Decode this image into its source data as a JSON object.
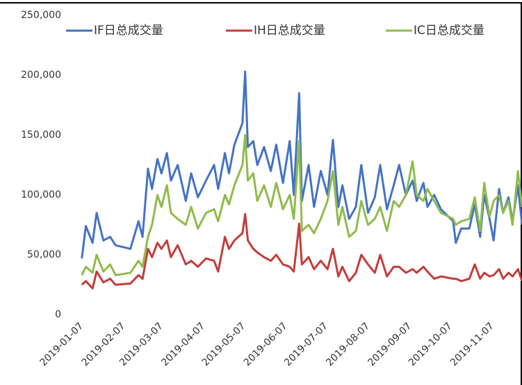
{
  "chart_data": {
    "type": "line",
    "x": [
      "2019-01-07",
      "2019-01-10",
      "2019-01-15",
      "2019-01-18",
      "2019-01-23",
      "2019-01-28",
      "2019-02-01",
      "2019-02-12",
      "2019-02-18",
      "2019-02-21",
      "2019-02-25",
      "2019-02-28",
      "2019-03-04",
      "2019-03-07",
      "2019-03-11",
      "2019-03-14",
      "2019-03-19",
      "2019-03-25",
      "2019-03-29",
      "2019-04-03",
      "2019-04-09",
      "2019-04-15",
      "2019-04-18",
      "2019-04-23",
      "2019-04-26",
      "2019-04-30",
      "2019-05-06",
      "2019-05-08",
      "2019-05-10",
      "2019-05-14",
      "2019-05-17",
      "2019-05-22",
      "2019-05-27",
      "2019-05-31",
      "2019-06-05",
      "2019-06-10",
      "2019-06-13",
      "2019-06-17",
      "2019-06-19",
      "2019-06-24",
      "2019-06-28",
      "2019-07-03",
      "2019-07-08",
      "2019-07-12",
      "2019-07-16",
      "2019-07-19",
      "2019-07-24",
      "2019-07-29",
      "2019-08-02",
      "2019-08-07",
      "2019-08-12",
      "2019-08-16",
      "2019-08-21",
      "2019-08-26",
      "2019-08-30",
      "2019-09-04",
      "2019-09-09",
      "2019-09-12",
      "2019-09-17",
      "2019-09-20",
      "2019-09-25",
      "2019-09-30",
      "2019-10-09",
      "2019-10-11",
      "2019-10-15",
      "2019-10-21",
      "2019-10-25",
      "2019-10-29",
      "2019-11-01",
      "2019-11-05",
      "2019-11-08",
      "2019-11-12",
      "2019-11-15",
      "2019-11-19",
      "2019-11-22",
      "2019-11-26",
      "2019-11-29"
    ],
    "series": [
      {
        "name": "IF日总成交量",
        "color": "#4472c4",
        "values": [
          47000,
          74000,
          60000,
          85000,
          62000,
          65000,
          58000,
          55000,
          78000,
          65000,
          122000,
          105000,
          130000,
          118000,
          135000,
          112000,
          125000,
          95000,
          118000,
          98000,
          112000,
          125000,
          105000,
          135000,
          118000,
          142000,
          160000,
          203000,
          140000,
          145000,
          125000,
          140000,
          120000,
          142000,
          110000,
          145000,
          100000,
          185000,
          95000,
          125000,
          90000,
          120000,
          100000,
          146000,
          90000,
          108000,
          80000,
          90000,
          125000,
          85000,
          98000,
          125000,
          88000,
          108000,
          125000,
          100000,
          112000,
          95000,
          110000,
          90000,
          100000,
          88000,
          78000,
          60000,
          72000,
          72000,
          92000,
          65000,
          100000,
          80000,
          62000,
          105000,
          85000,
          98000,
          78000,
          108000,
          75000
        ]
      },
      {
        "name": "IH日总成交量",
        "color": "#c43c39",
        "values": [
          25000,
          28000,
          22000,
          36000,
          27000,
          30000,
          25000,
          26000,
          33000,
          30000,
          55000,
          48000,
          60000,
          55000,
          62000,
          48000,
          58000,
          42000,
          45000,
          40000,
          47000,
          45000,
          36000,
          65000,
          55000,
          62000,
          68000,
          84000,
          62000,
          55000,
          52000,
          48000,
          45000,
          50000,
          42000,
          40000,
          36000,
          76000,
          42000,
          48000,
          38000,
          45000,
          38000,
          55000,
          32000,
          40000,
          28000,
          35000,
          50000,
          42000,
          35000,
          50000,
          32000,
          40000,
          40000,
          35000,
          38000,
          35000,
          40000,
          36000,
          30000,
          32000,
          30000,
          30000,
          28000,
          30000,
          42000,
          30000,
          35000,
          32000,
          33000,
          38000,
          30000,
          35000,
          32000,
          38000,
          28000
        ]
      },
      {
        "name": "IC日总成交量",
        "color": "#8fbb4a",
        "values": [
          33000,
          40000,
          35000,
          50000,
          36000,
          42000,
          33000,
          35000,
          45000,
          40000,
          65000,
          75000,
          100000,
          90000,
          108000,
          85000,
          80000,
          75000,
          90000,
          72000,
          85000,
          88000,
          78000,
          100000,
          92000,
          108000,
          125000,
          150000,
          112000,
          118000,
          95000,
          108000,
          90000,
          110000,
          88000,
          100000,
          80000,
          145000,
          70000,
          75000,
          68000,
          80000,
          95000,
          120000,
          75000,
          90000,
          65000,
          70000,
          95000,
          75000,
          80000,
          90000,
          70000,
          95000,
          90000,
          100000,
          128000,
          100000,
          95000,
          105000,
          95000,
          85000,
          80000,
          75000,
          78000,
          80000,
          98000,
          70000,
          110000,
          82000,
          95000,
          100000,
          85000,
          95000,
          75000,
          120000,
          90000
        ]
      }
    ],
    "xlim": [
      "2019-01-01",
      "2019-11-29"
    ],
    "xticks": [
      "2019-01-07",
      "2019-02-07",
      "2019-03-07",
      "2019-04-07",
      "2019-05-07",
      "2019-06-07",
      "2019-07-07",
      "2019-08-07",
      "2019-09-07",
      "2019-10-07",
      "2019-11-07"
    ],
    "ylim": [
      0,
      250000
    ],
    "yticks": [
      0,
      {
        "value": 50000,
        "label": "50,000"
      },
      {
        "value": 100000,
        "label": "100,000"
      },
      {
        "value": 150000,
        "label": "150,000"
      },
      {
        "value": 200000,
        "label": "200,000"
      },
      {
        "value": 250000,
        "label": "250,000"
      }
    ],
    "grid": false,
    "legend": "top"
  }
}
